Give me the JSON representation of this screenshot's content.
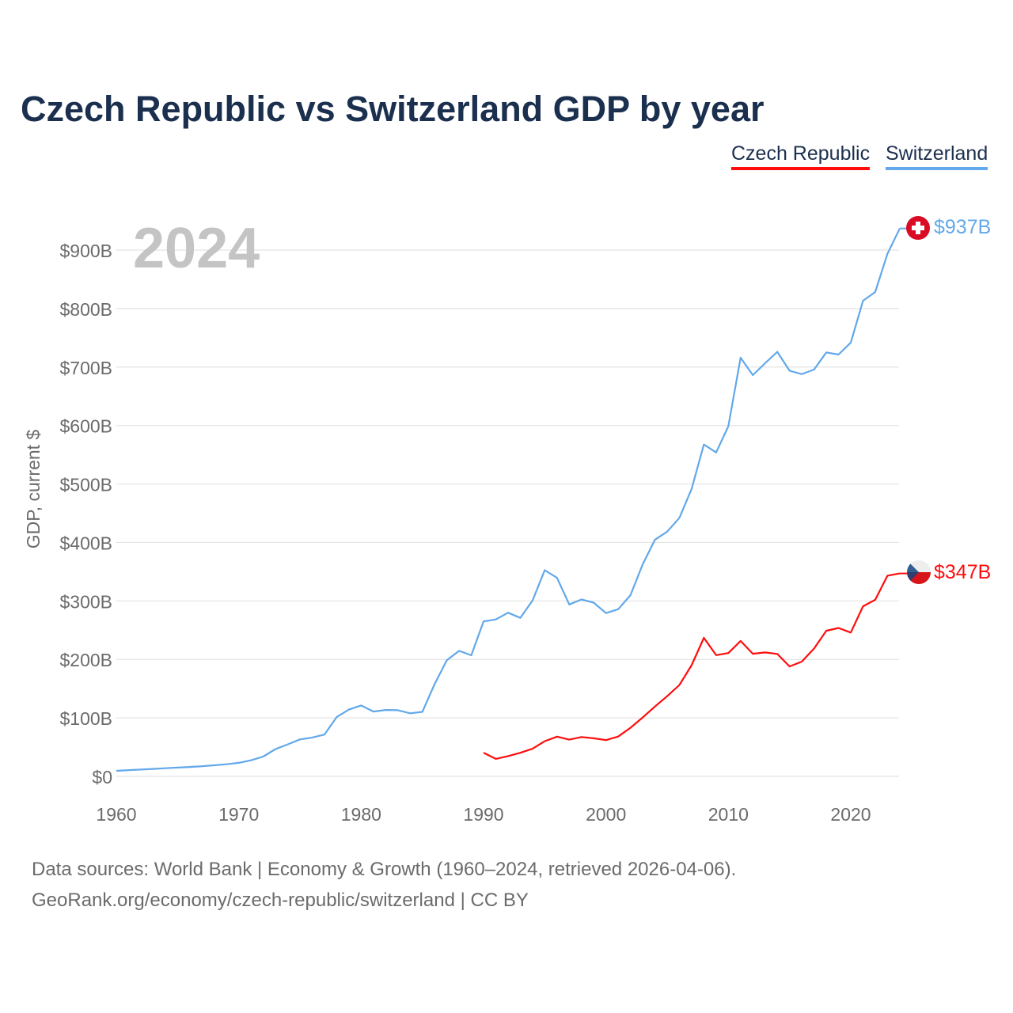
{
  "chart_data": {
    "type": "line",
    "title": "Czech Republic vs Switzerland GDP by year",
    "xlabel": "",
    "ylabel": "GDP, current $",
    "year_watermark": "2024",
    "xlim": [
      1960,
      2024
    ],
    "ylim": [
      0,
      950
    ],
    "x_ticks": [
      1960,
      1970,
      1980,
      1990,
      2000,
      2010,
      2020
    ],
    "y_ticks": [
      0,
      100,
      200,
      300,
      400,
      500,
      600,
      700,
      800,
      900
    ],
    "y_tick_labels": [
      "$0",
      "$100B",
      "$200B",
      "$300B",
      "$400B",
      "$500B",
      "$600B",
      "$700B",
      "$800B",
      "$900B"
    ],
    "grid": true,
    "legend_position": "top-right",
    "series": [
      {
        "name": "Czech Republic",
        "color": "#ff0d0d",
        "end_label": "$347B",
        "start_year": 1990,
        "values": [
          40.5,
          29.9,
          34.6,
          40.3,
          47.3,
          60.1,
          67.9,
          62.8,
          67.2,
          65.1,
          62.0,
          68.1,
          83.1,
          100.7,
          119.4,
          137.1,
          156.3,
          190.2,
          236.8,
          207.4,
          210.9,
          231.5,
          209.7,
          212.0,
          209.4,
          188.0,
          196.3,
          218.6,
          249.0,
          253.7,
          245.9,
          290.9,
          302.0,
          343.2,
          347.0
        ]
      },
      {
        "name": "Switzerland",
        "color": "#62a8ea",
        "end_label": "$937B",
        "start_year": 1960,
        "values": [
          9.5,
          10.7,
          11.7,
          12.7,
          13.9,
          15.0,
          16.1,
          17.3,
          18.9,
          20.7,
          23.1,
          27.5,
          33.9,
          46.7,
          54.7,
          63.2,
          66.5,
          71.4,
          101.4,
          114.2,
          121.2,
          110.9,
          113.6,
          113.2,
          107.9,
          110.3,
          157.7,
          198.5,
          214.7,
          207.1,
          265.0,
          268.4,
          279.9,
          271.1,
          300.7,
          352.6,
          339.5,
          294.0,
          302.5,
          297.1,
          279.2,
          285.9,
          309.8,
          362.6,
          404.5,
          418.5,
          442.2,
          491.5,
          567.5,
          554.0,
          598.8,
          715.9,
          686.1,
          706.5,
          725.9,
          693.6,
          687.9,
          695.6,
          725.0,
          721.4,
          741.8,
          813.4,
          828.3,
          893.8,
          937.0
        ]
      }
    ]
  },
  "footer": {
    "line1": "Data sources: World Bank | Economy & Growth (1960–2024, retrieved 2026-04-06).",
    "line2": "GeoRank.org/economy/czech-republic/switzerland | CC BY"
  }
}
